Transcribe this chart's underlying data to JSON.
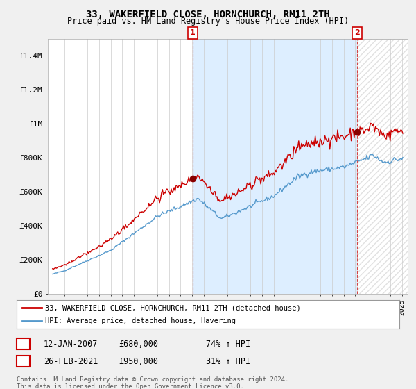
{
  "title": "33, WAKERFIELD CLOSE, HORNCHURCH, RM11 2TH",
  "subtitle": "Price paid vs. HM Land Registry's House Price Index (HPI)",
  "red_line_label": "33, WAKERFIELD CLOSE, HORNCHURCH, RM11 2TH (detached house)",
  "blue_line_label": "HPI: Average price, detached house, Havering",
  "sale1_date_label": "12-JAN-2007",
  "sale1_price_label": "£680,000",
  "sale1_hpi_label": "74% ↑ HPI",
  "sale2_date_label": "26-FEB-2021",
  "sale2_price_label": "£950,000",
  "sale2_hpi_label": "31% ↑ HPI",
  "footer": "Contains HM Land Registry data © Crown copyright and database right 2024.\nThis data is licensed under the Open Government Licence v3.0.",
  "sale1_year": 2007.04,
  "sale1_price": 680000,
  "sale2_year": 2021.15,
  "sale2_price": 950000,
  "ylim": [
    0,
    1500000
  ],
  "yticks": [
    0,
    200000,
    400000,
    600000,
    800000,
    1000000,
    1200000,
    1400000
  ],
  "ytick_labels": [
    "£0",
    "£200K",
    "£400K",
    "£600K",
    "£800K",
    "£1M",
    "£1.2M",
    "£1.4M"
  ],
  "red_color": "#cc0000",
  "blue_color": "#5599cc",
  "marker_color": "#880000",
  "background_color": "#f0f0f0",
  "plot_bg_color": "#ffffff",
  "shade_color": "#ddeeff",
  "hatch_color": "#cccccc"
}
